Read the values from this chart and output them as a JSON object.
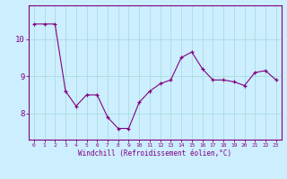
{
  "x": [
    0,
    1,
    2,
    3,
    4,
    5,
    6,
    7,
    8,
    9,
    10,
    11,
    12,
    13,
    14,
    15,
    16,
    17,
    18,
    19,
    20,
    21,
    22,
    23
  ],
  "y": [
    10.4,
    10.4,
    10.4,
    8.6,
    8.2,
    8.5,
    8.5,
    7.9,
    7.6,
    7.6,
    8.3,
    8.6,
    8.8,
    8.9,
    9.5,
    9.65,
    9.2,
    8.9,
    8.9,
    8.85,
    8.75,
    9.1,
    9.15,
    8.9
  ],
  "line_color": "#800080",
  "bg_color": "#cceeff",
  "grid_color": "#aadddd",
  "xlabel": "Windchill (Refroidissement éolien,°C)",
  "yticks": [
    8,
    9,
    10
  ],
  "xticks": [
    0,
    1,
    2,
    3,
    4,
    5,
    6,
    7,
    8,
    9,
    10,
    11,
    12,
    13,
    14,
    15,
    16,
    17,
    18,
    19,
    20,
    21,
    22,
    23
  ],
  "ylim": [
    7.3,
    10.9
  ],
  "xlim": [
    -0.5,
    23.5
  ]
}
